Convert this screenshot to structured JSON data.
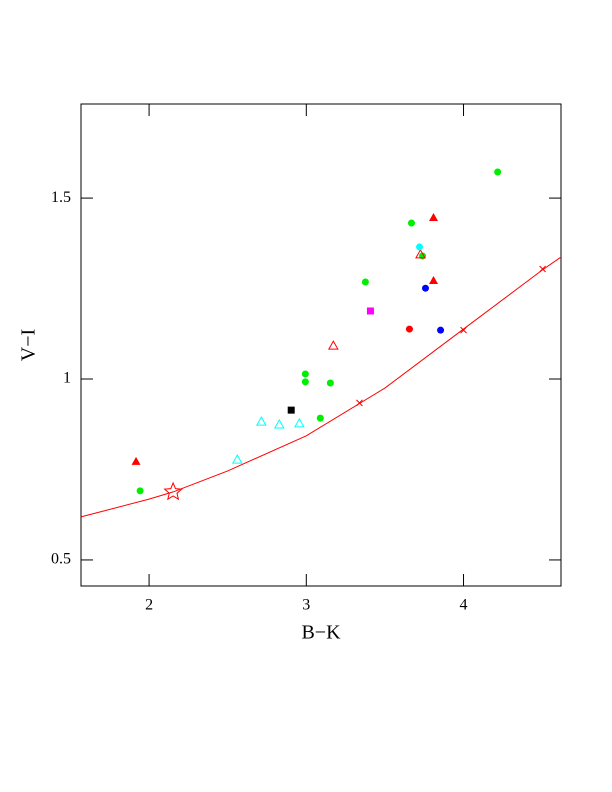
{
  "chart_data": {
    "type": "scatter",
    "x_label": "B−K",
    "y_label": "V−I",
    "xlim": [
      1.567,
      4.62
    ],
    "ylim": [
      0.428,
      1.76
    ],
    "xticks": [
      2,
      3,
      4
    ],
    "yticks": [
      0.5,
      1,
      1.5
    ],
    "series": [
      {
        "marker": "line",
        "color": "#ff0000",
        "x": [
          1.567,
          2,
          2.153,
          2.5,
          3,
          3.5,
          4,
          4.5,
          4.62
        ],
        "values": [
          0.619,
          0.668,
          0.688,
          0.746,
          0.843,
          0.975,
          1.138,
          1.301,
          1.337
        ]
      },
      {
        "marker": "circle",
        "color": "#00ee00",
        "x": [
          1.943,
          2.994,
          2.994,
          3.153,
          3.089,
          3.376,
          3.669,
          3.739,
          4.217
        ],
        "values": [
          0.691,
          1.014,
          0.992,
          0.989,
          0.892,
          1.268,
          1.431,
          1.34,
          1.572
        ]
      },
      {
        "marker": "triangle",
        "color": "#ff0000",
        "x": [
          1.917,
          3.809,
          3.809
        ],
        "values": [
          0.771,
          1.445,
          1.271
        ]
      },
      {
        "marker": "open-triangle",
        "color": "#ff0000",
        "x": [
          3.172,
          3.726
        ],
        "values": [
          1.091,
          1.343
        ]
      },
      {
        "marker": "circle",
        "color": "#ff0000",
        "x": [
          3.656
        ],
        "values": [
          1.138
        ]
      },
      {
        "marker": "circle",
        "color": "#0000ff",
        "x": [
          3.758,
          3.854
        ],
        "values": [
          1.251,
          1.135
        ]
      },
      {
        "marker": "circle",
        "color": "#00ffff",
        "x": [
          3.72
        ],
        "values": [
          1.365
        ]
      },
      {
        "marker": "open-triangle",
        "color": "#00ffff",
        "x": [
          2.561,
          2.714,
          2.828,
          2.956
        ],
        "values": [
          0.776,
          0.881,
          0.873,
          0.876
        ]
      },
      {
        "marker": "square",
        "color": "#000000",
        "x": [
          2.904
        ],
        "values": [
          0.914
        ]
      },
      {
        "marker": "square",
        "color": "#ff00ff",
        "x": [
          3.408
        ],
        "values": [
          1.188
        ]
      },
      {
        "marker": "cross",
        "color": "#ff0000",
        "x": [
          3.338,
          4.0,
          4.503
        ],
        "values": [
          0.934,
          1.135,
          1.304
        ]
      },
      {
        "marker": "star",
        "color": "#ff0000",
        "x": [
          2.153
        ],
        "values": [
          0.688
        ]
      }
    ]
  }
}
